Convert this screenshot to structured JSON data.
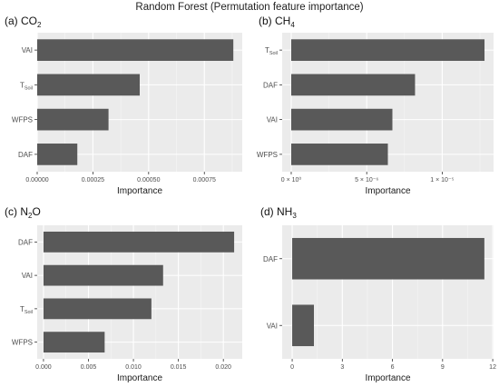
{
  "figure_title": "Random Forest (Permutation feature importance)",
  "chart_data": [
    {
      "type": "bar",
      "orientation": "horizontal",
      "panel_label": "(a) CO",
      "panel_subscript": "2",
      "categories": [
        "VAI",
        "T",
        "WFPS",
        "DAF"
      ],
      "category_subscripts": [
        "",
        "Soil",
        "",
        ""
      ],
      "values": [
        0.00088,
        0.00046,
        0.00032,
        0.00018
      ],
      "xlim": [
        0,
        0.00092
      ],
      "xticks": [
        0,
        0.00025,
        0.0005,
        0.00075
      ],
      "xtick_labels": [
        "0.00000",
        "0.00025",
        "0.00050",
        "0.00075"
      ],
      "xlabel": "Importance",
      "grid": true
    },
    {
      "type": "bar",
      "orientation": "horizontal",
      "panel_label": "(b) CH",
      "panel_subscript": "4",
      "categories": [
        "T",
        "DAF",
        "VAI",
        "WFPS"
      ],
      "category_subscripts": [
        "Soil",
        "",
        "",
        ""
      ],
      "values": [
        1.28e-05,
        8.2e-06,
        6.7e-06,
        6.4e-06
      ],
      "xlim": [
        -6e-07,
        1.34e-05
      ],
      "xticks": [
        0,
        5e-06,
        1e-05
      ],
      "xtick_labels": [
        "0 × 10⁰",
        "5 × 10⁻⁶",
        "1 × 10⁻⁵"
      ],
      "xlabel": "Importance",
      "grid": true
    },
    {
      "type": "bar",
      "orientation": "horizontal",
      "panel_label": "(c) N",
      "panel_subscript": "2",
      "panel_label_suffix": "O",
      "categories": [
        "DAF",
        "VAI",
        "T",
        "WFPS"
      ],
      "category_subscripts": [
        "",
        "",
        "Soil",
        ""
      ],
      "values": [
        0.0212,
        0.0133,
        0.012,
        0.0068
      ],
      "xlim": [
        -0.0007,
        0.0221
      ],
      "xticks": [
        0,
        0.005,
        0.01,
        0.015,
        0.02
      ],
      "xtick_labels": [
        "0.000",
        "0.005",
        "0.010",
        "0.015",
        "0.020"
      ],
      "xlabel": "Importance",
      "grid": true
    },
    {
      "type": "bar",
      "orientation": "horizontal",
      "panel_label": "(d) NH",
      "panel_subscript": "3",
      "categories": [
        "DAF",
        "VAI"
      ],
      "category_subscripts": [
        "",
        ""
      ],
      "values": [
        11.5,
        1.3
      ],
      "xlim": [
        -0.6,
        12.05
      ],
      "xticks": [
        0,
        3,
        6,
        9,
        12
      ],
      "xtick_labels": [
        "0",
        "3",
        "6",
        "9",
        "12"
      ],
      "xlabel": "Importance",
      "grid": true
    }
  ],
  "colors": {
    "panel_bg": "#ebebeb",
    "grid_major": "#ffffff",
    "bar": "#595959",
    "axis_text": "#4d4d4d",
    "axis_title": "#1a1a1a"
  }
}
